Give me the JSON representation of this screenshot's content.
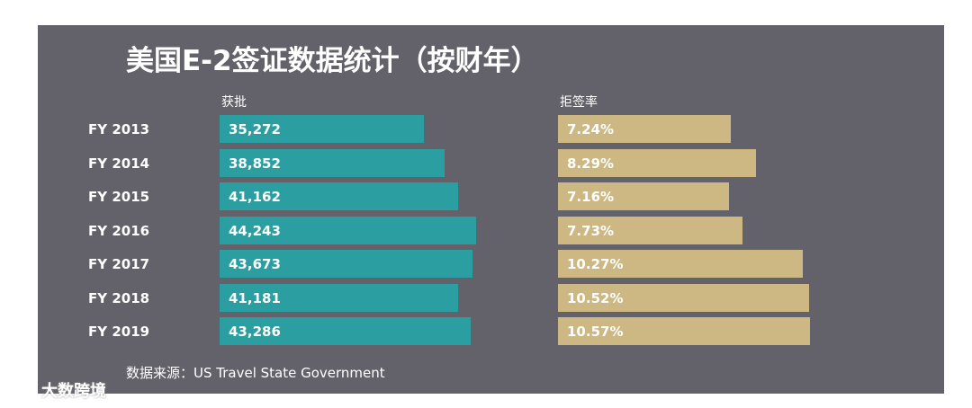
{
  "chart_data": {
    "type": "bar",
    "title": "美国E-2签证数据统计（按财年）",
    "categories": [
      "FY 2013",
      "FY 2014",
      "FY 2015",
      "FY 2016",
      "FY 2017",
      "FY 2018",
      "FY 2019"
    ],
    "series": [
      {
        "name": "获批",
        "values": [
          35272,
          38852,
          41162,
          44243,
          43673,
          41181,
          43286
        ],
        "labels": [
          "35,272",
          "38,852",
          "41,162",
          "44,243",
          "43,673",
          "41,181",
          "43,286"
        ],
        "color": "#2b9ea2"
      },
      {
        "name": "拒签率",
        "values": [
          7.24,
          8.29,
          7.16,
          7.73,
          10.27,
          10.52,
          10.57
        ],
        "labels": [
          "7.24%",
          "8.29%",
          "7.16%",
          "7.73%",
          "10.27%",
          "10.52%",
          "10.57%"
        ],
        "color": "#cdb783"
      }
    ],
    "source": "数据来源：US Travel State Government"
  },
  "watermark": "大数跨境",
  "colors": {
    "panel_background": "#636169",
    "text": "#ffffff"
  }
}
